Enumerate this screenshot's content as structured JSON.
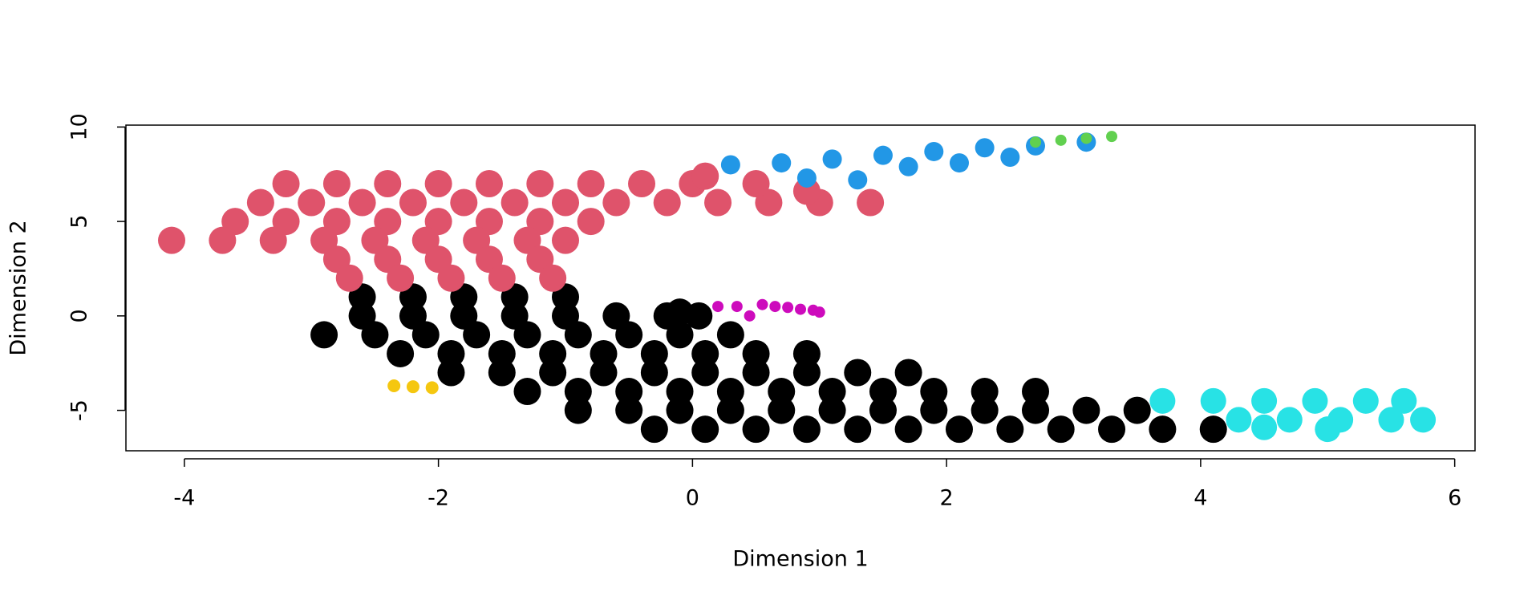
{
  "chart_data": {
    "type": "scatter",
    "x_label": "Dimension 1",
    "y_label": "Dimension 2",
    "xlim": [
      -4.46,
      6.16
    ],
    "ylim": [
      -7.14,
      10.1
    ],
    "xticks": [
      -4,
      -2,
      0,
      2,
      4,
      6
    ],
    "yticks": [
      -5,
      0,
      5,
      10
    ],
    "series": [
      {
        "color": "#000000",
        "x": [
          -2.6,
          -2.2,
          -1.8,
          -1.4,
          -1.0,
          -2.6,
          -2.2,
          -1.8,
          -1.4,
          -1.0,
          -0.6,
          -0.2,
          -2.9,
          -2.5,
          -2.1,
          -1.7,
          -1.3,
          -0.9,
          -0.5,
          -0.1,
          0.3,
          -2.3,
          -1.9,
          -1.5,
          -1.1,
          -0.7,
          -0.3,
          0.1,
          0.5,
          0.9,
          -1.9,
          -1.5,
          -1.1,
          -0.7,
          -0.3,
          0.1,
          0.5,
          0.9,
          1.3,
          1.7,
          -1.3,
          -0.9,
          -0.5,
          -0.1,
          0.3,
          0.7,
          1.1,
          1.5,
          1.9,
          2.3,
          2.7,
          -0.9,
          -0.5,
          -0.1,
          0.3,
          0.7,
          1.1,
          1.5,
          1.9,
          2.3,
          2.7,
          3.1,
          3.5,
          -0.3,
          0.1,
          0.5,
          0.9,
          1.3,
          1.7,
          2.1,
          2.5,
          2.9,
          3.3,
          3.7,
          4.1,
          -0.1,
          0.05
        ],
        "values": [
          1,
          1,
          1,
          1,
          1,
          0,
          0,
          0,
          0,
          0,
          0,
          0,
          -1,
          -1,
          -1,
          -1,
          -1,
          -1,
          -1,
          -1,
          -1,
          -2,
          -2,
          -2,
          -2,
          -2,
          -2,
          -2,
          -2,
          -2,
          -3,
          -3,
          -3,
          -3,
          -3,
          -3,
          -3,
          -3,
          -3,
          -3,
          -4,
          -4,
          -4,
          -4,
          -4,
          -4,
          -4,
          -4,
          -4,
          -4,
          -4,
          -5,
          -5,
          -5,
          -5,
          -5,
          -5,
          -5,
          -5,
          -5,
          -5,
          -5,
          -5,
          -6,
          -6,
          -6,
          -6,
          -6,
          -6,
          -6,
          -6,
          -6,
          -6,
          -6,
          -6,
          0.2,
          0
        ]
      },
      {
        "color": "#DF536B",
        "x": [
          -3.2,
          -2.8,
          -2.4,
          -2.0,
          -1.6,
          -1.2,
          -0.8,
          -0.4,
          0,
          -3.4,
          -3.0,
          -2.6,
          -2.2,
          -1.8,
          -1.4,
          -1.0,
          -0.6,
          -0.2,
          0.2,
          0.6,
          1.0,
          1.4,
          -3.6,
          -3.2,
          -2.8,
          -2.4,
          -2.0,
          -1.6,
          -1.2,
          -0.8,
          -4.1,
          -3.7,
          -3.3,
          -2.9,
          -2.5,
          -2.1,
          -1.7,
          -1.3,
          -1.0,
          -2.8,
          -2.4,
          -2.0,
          -1.6,
          -1.2,
          -2.7,
          -2.3,
          -1.9,
          -1.5,
          -1.1,
          0.1,
          0.5,
          0.9
        ],
        "values": [
          7,
          7,
          7,
          7,
          7,
          7,
          7,
          7,
          7,
          6,
          6,
          6,
          6,
          6,
          6,
          6,
          6,
          6,
          6,
          6,
          6,
          6,
          5,
          5,
          5,
          5,
          5,
          5,
          5,
          5,
          4,
          4,
          4,
          4,
          4,
          4,
          4,
          4,
          4,
          3,
          3,
          3,
          3,
          3,
          2,
          2,
          2,
          2,
          2,
          7.4,
          7.0,
          6.6
        ]
      },
      {
        "color": "#2297E6",
        "x": [
          0.3,
          0.7,
          1.1,
          1.5,
          1.9,
          2.3,
          2.7,
          3.1,
          0.9,
          1.3,
          1.7,
          2.1,
          2.5
        ],
        "values": [
          8,
          8.1,
          8.3,
          8.5,
          8.7,
          8.9,
          9,
          9.2,
          7.3,
          7.2,
          7.9,
          8.1,
          8.4
        ]
      },
      {
        "color": "#61D04F",
        "x": [
          2.7,
          2.9,
          3.1,
          3.3
        ],
        "values": [
          9.2,
          9.3,
          9.4,
          9.5
        ]
      },
      {
        "color": "#28E2E5",
        "x": [
          3.7,
          4.1,
          4.5,
          4.9,
          5.3,
          5.6,
          4.3,
          4.7,
          5.1,
          5.5,
          5.75,
          4.5,
          5.0
        ],
        "values": [
          -4.5,
          -4.5,
          -4.5,
          -4.5,
          -4.5,
          -4.5,
          -5.5,
          -5.5,
          -5.5,
          -5.5,
          -5.5,
          -5.9,
          -6.0
        ]
      },
      {
        "color": "#CD0BBC",
        "x": [
          0.55,
          0.65,
          0.75,
          0.85,
          0.95,
          1.0,
          0.2,
          0.35,
          0.45
        ],
        "values": [
          0.6,
          0.5,
          0.45,
          0.35,
          0.3,
          0.2,
          0.5,
          0.5,
          0
        ]
      },
      {
        "color": "#F5C710",
        "x": [
          -2.35,
          -2.2,
          -2.05
        ],
        "values": [
          -3.7,
          -3.75,
          -3.8
        ]
      }
    ]
  }
}
